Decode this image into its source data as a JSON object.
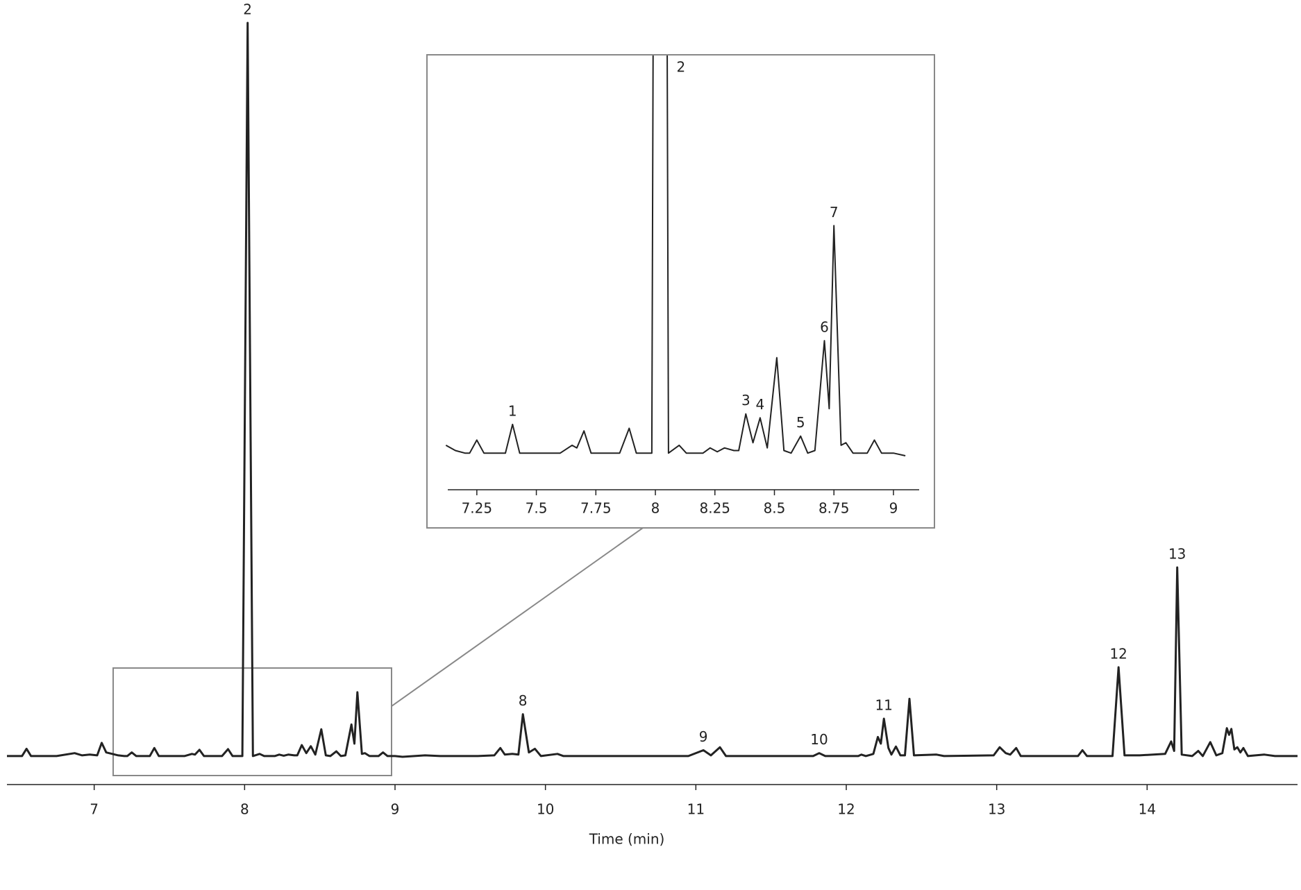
{
  "chart_data": [
    {
      "type": "line",
      "xlabel": "Time (min)",
      "xlim": [
        6.42,
        15.0
      ],
      "xticks": [
        7,
        8,
        9,
        10,
        11,
        12,
        13,
        14
      ],
      "ylim": [
        0,
        100
      ],
      "color": "#222222",
      "x": [
        6.42,
        6.52,
        6.55,
        6.58,
        6.75,
        6.87,
        6.92,
        6.97,
        7.02,
        7.05,
        7.08,
        7.12,
        7.16,
        7.2,
        7.22,
        7.25,
        7.28,
        7.37,
        7.4,
        7.43,
        7.6,
        7.65,
        7.67,
        7.7,
        7.73,
        7.85,
        7.89,
        7.92,
        7.985,
        8.02,
        8.055,
        8.1,
        8.13,
        8.2,
        8.23,
        8.26,
        8.29,
        8.33,
        8.35,
        8.38,
        8.41,
        8.44,
        8.47,
        8.51,
        8.54,
        8.57,
        8.61,
        8.64,
        8.67,
        8.71,
        8.73,
        8.75,
        8.78,
        8.8,
        8.83,
        8.89,
        8.92,
        8.95,
        9.0,
        9.05,
        9.2,
        9.3,
        9.55,
        9.66,
        9.7,
        9.73,
        9.78,
        9.82,
        9.85,
        9.89,
        9.93,
        9.97,
        10.08,
        10.12,
        10.2,
        10.5,
        10.95,
        11.05,
        11.1,
        11.16,
        11.2,
        11.4,
        11.78,
        11.82,
        11.86,
        12.08,
        12.1,
        12.13,
        12.18,
        12.21,
        12.23,
        12.25,
        12.28,
        12.3,
        12.33,
        12.36,
        12.39,
        12.42,
        12.45,
        12.6,
        12.65,
        12.98,
        13.02,
        13.06,
        13.09,
        13.13,
        13.16,
        13.35,
        13.54,
        13.57,
        13.6,
        13.77,
        13.81,
        13.85,
        13.95,
        14.12,
        14.16,
        14.18,
        14.2,
        14.23,
        14.3,
        14.34,
        14.37,
        14.42,
        14.46,
        14.5,
        14.53,
        14.545,
        14.56,
        14.58,
        14.6,
        14.62,
        14.64,
        14.67,
        14.78,
        14.85,
        15.0
      ],
      "values": [
        0.1,
        0.1,
        1.1,
        0.1,
        0.1,
        0.5,
        0.2,
        0.3,
        0.2,
        1.9,
        0.6,
        0.4,
        0.2,
        0.1,
        0.1,
        0.6,
        0.1,
        0.1,
        1.2,
        0.1,
        0.1,
        0.4,
        0.3,
        0.95,
        0.1,
        0.1,
        1.05,
        0.1,
        0.1,
        100,
        0.1,
        0.4,
        0.1,
        0.1,
        0.3,
        0.15,
        0.3,
        0.2,
        0.2,
        1.6,
        0.5,
        1.45,
        0.3,
        3.75,
        0.2,
        0.1,
        0.75,
        0.1,
        0.2,
        4.4,
        1.8,
        8.8,
        0.4,
        0.5,
        0.1,
        0.1,
        0.6,
        0.1,
        0.1,
        0.0,
        0.2,
        0.1,
        0.1,
        0.2,
        1.2,
        0.3,
        0.4,
        0.3,
        5.8,
        0.6,
        1.1,
        0.1,
        0.4,
        0.1,
        0.1,
        0.1,
        0.1,
        0.9,
        0.2,
        1.3,
        0.1,
        0.1,
        0.1,
        0.5,
        0.1,
        0.1,
        0.3,
        0.1,
        0.4,
        2.7,
        1.8,
        5.2,
        1.2,
        0.3,
        1.4,
        0.2,
        0.2,
        7.9,
        0.2,
        0.3,
        0.1,
        0.2,
        1.3,
        0.5,
        0.3,
        1.2,
        0.1,
        0.1,
        0.1,
        0.9,
        0.1,
        0.1,
        12.2,
        0.2,
        0.2,
        0.4,
        2.1,
        0.8,
        25.8,
        0.3,
        0.1,
        0.8,
        0.1,
        2.0,
        0.2,
        0.5,
        3.9,
        3.0,
        3.8,
        1.0,
        1.3,
        0.6,
        1.2,
        0.1,
        0.3,
        0.1,
        0.1
      ],
      "annotations": [
        {
          "text": "2",
          "x": 8.02
        },
        {
          "text": "8",
          "x": 9.85
        },
        {
          "text": "9",
          "x": 11.05
        },
        {
          "text": "10",
          "x": 11.82
        },
        {
          "text": "11",
          "x": 12.25
        },
        {
          "text": "12",
          "x": 13.81
        },
        {
          "text": "13",
          "x": 14.2
        }
      ]
    },
    {
      "type": "inset",
      "xlim": [
        7.128,
        9.108
      ],
      "ylim": [
        0,
        15.2
      ],
      "xticks": [
        7.25,
        7.5,
        7.75,
        8,
        8.25,
        8.5,
        8.75,
        9
      ],
      "annotations": [
        {
          "text": "1",
          "x": 7.4
        },
        {
          "text": "2",
          "x": 8.02
        },
        {
          "text": "3",
          "x": 8.38
        },
        {
          "text": "4",
          "x": 8.44
        },
        {
          "text": "5",
          "x": 8.61
        },
        {
          "text": "6",
          "x": 8.71
        },
        {
          "text": "7",
          "x": 8.75
        }
      ]
    }
  ]
}
